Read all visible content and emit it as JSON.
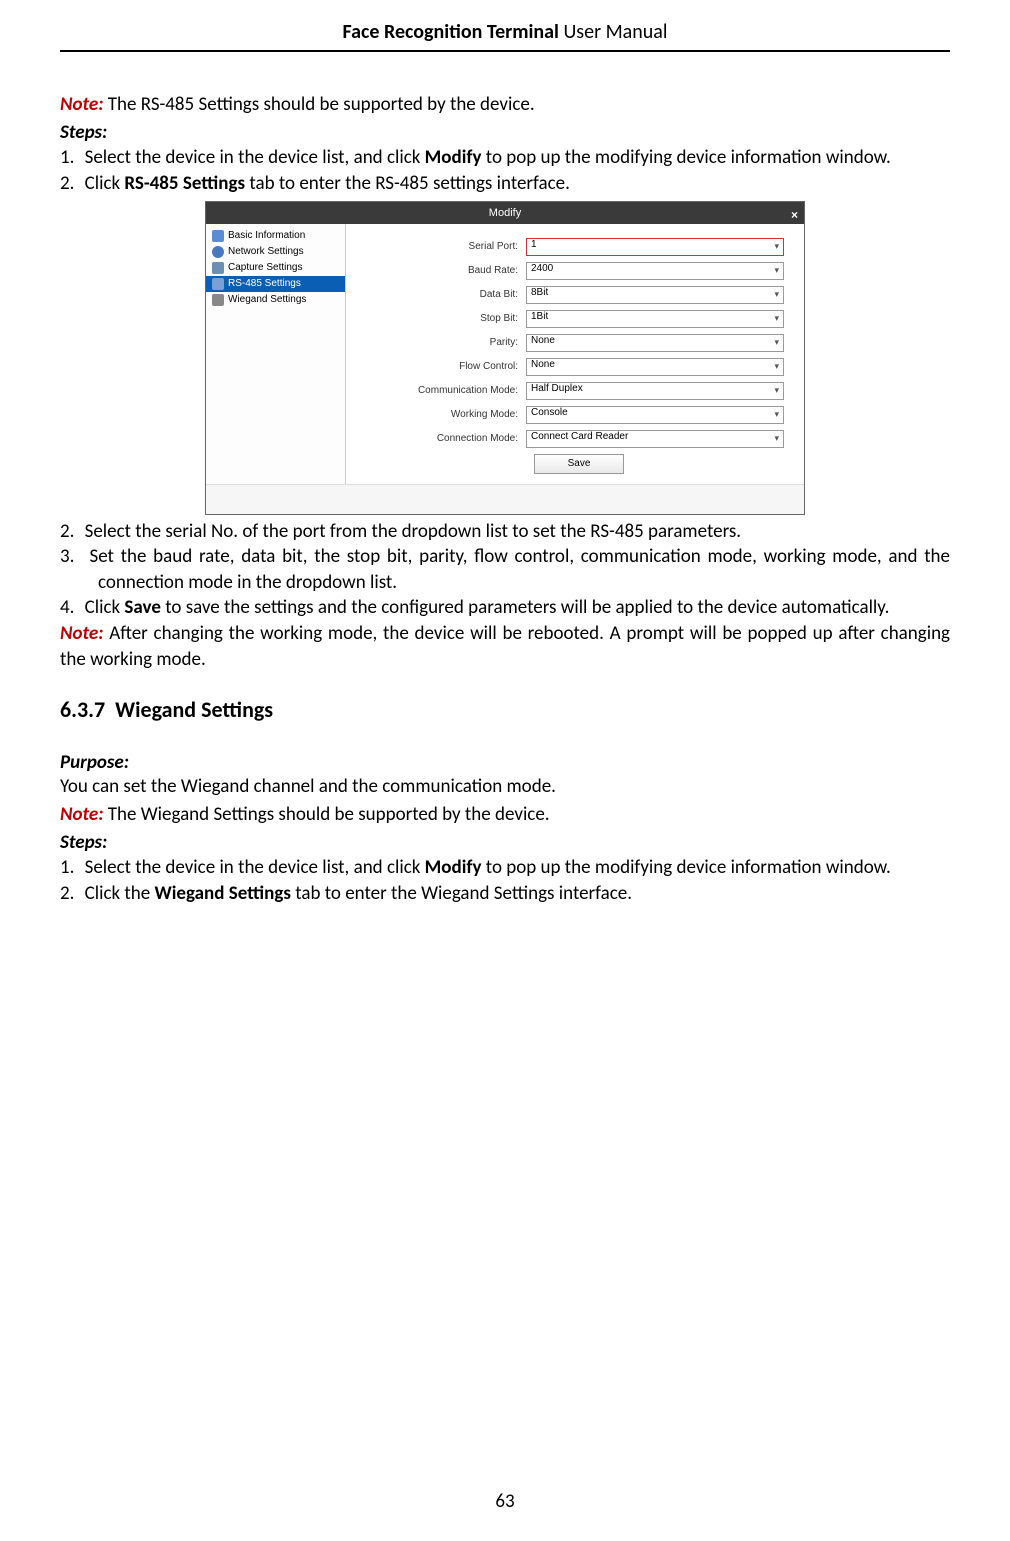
{
  "header": {
    "title_bold": "Face Recognition Terminal",
    "title_rest": " User Manual"
  },
  "colors": {
    "note": "#c00000",
    "text": "#000000"
  },
  "note1": {
    "label": "Note:",
    "text": " The RS-485 Settings should be supported by the device."
  },
  "steps1_label": "Steps:",
  "steps1": [
    {
      "n": "1.",
      "pre": "Select the device in the device list, and click ",
      "bold": "Modify",
      "post": " to pop up the modifying device information window."
    },
    {
      "n": "2.",
      "pre": "Click ",
      "bold": "RS-485 Settings",
      "post": " tab to enter the RS-485 settings interface."
    }
  ],
  "dialog": {
    "title": "Modify",
    "close": "×",
    "sidebar": [
      {
        "label": "Basic Information",
        "icon": "ic-blue",
        "sel": false
      },
      {
        "label": "Network Settings",
        "icon": "ic-net",
        "sel": false
      },
      {
        "label": "Capture Settings",
        "icon": "ic-cap",
        "sel": false
      },
      {
        "label": "RS-485 Settings",
        "icon": "ic-rs",
        "sel": true
      },
      {
        "label": "Wiegand Settings",
        "icon": "ic-wg",
        "sel": false
      }
    ],
    "fields": [
      {
        "label": "Serial Port:",
        "value": "1",
        "red": true
      },
      {
        "label": "Baud Rate:",
        "value": "2400",
        "red": false
      },
      {
        "label": "Data Bit:",
        "value": "8Bit",
        "red": false
      },
      {
        "label": "Stop Bit:",
        "value": "1Bit",
        "red": false
      },
      {
        "label": "Parity:",
        "value": "None",
        "red": false
      },
      {
        "label": "Flow Control:",
        "value": "None",
        "red": false
      },
      {
        "label": "Communication Mode:",
        "value": "Half Duplex",
        "red": false
      },
      {
        "label": "Working Mode:",
        "value": "Console",
        "red": false
      },
      {
        "label": "Connection Mode:",
        "value": "Connect Card Reader",
        "red": false
      }
    ],
    "save": "Save"
  },
  "steps2": [
    {
      "n": "2.",
      "text": "Select the serial No. of the port from the dropdown list to set the RS-485 parameters."
    },
    {
      "n": "3.",
      "text": "Set the baud rate, data bit, the stop bit, parity, flow control, communication mode, working mode, and the connection mode in the dropdown list."
    },
    {
      "n": "4.",
      "pre": "Click ",
      "bold": "Save",
      "post": " to save the settings and the configured parameters will be applied to the device automatically."
    }
  ],
  "note2": {
    "label": "Note:",
    "text": " After changing the working mode, the device will be rebooted. A prompt will be popped up after changing the working mode."
  },
  "section": {
    "num": "6.3.7",
    "title": "Wiegand Settings"
  },
  "purpose": {
    "label": "Purpose:",
    "text": "You can set the Wiegand channel and the communication mode."
  },
  "note3": {
    "label": "Note:",
    "text": " The Wiegand Settings should be supported by the device."
  },
  "steps3_label": "Steps:",
  "steps3": [
    {
      "n": "1.",
      "pre": "Select the device in the device list, and click ",
      "bold": "Modify",
      "post": " to pop up the modifying device information window."
    },
    {
      "n": "2.",
      "pre": "Click the ",
      "bold": "Wiegand Settings",
      "post": " tab to enter the Wiegand Settings interface."
    }
  ],
  "page_number": "63"
}
